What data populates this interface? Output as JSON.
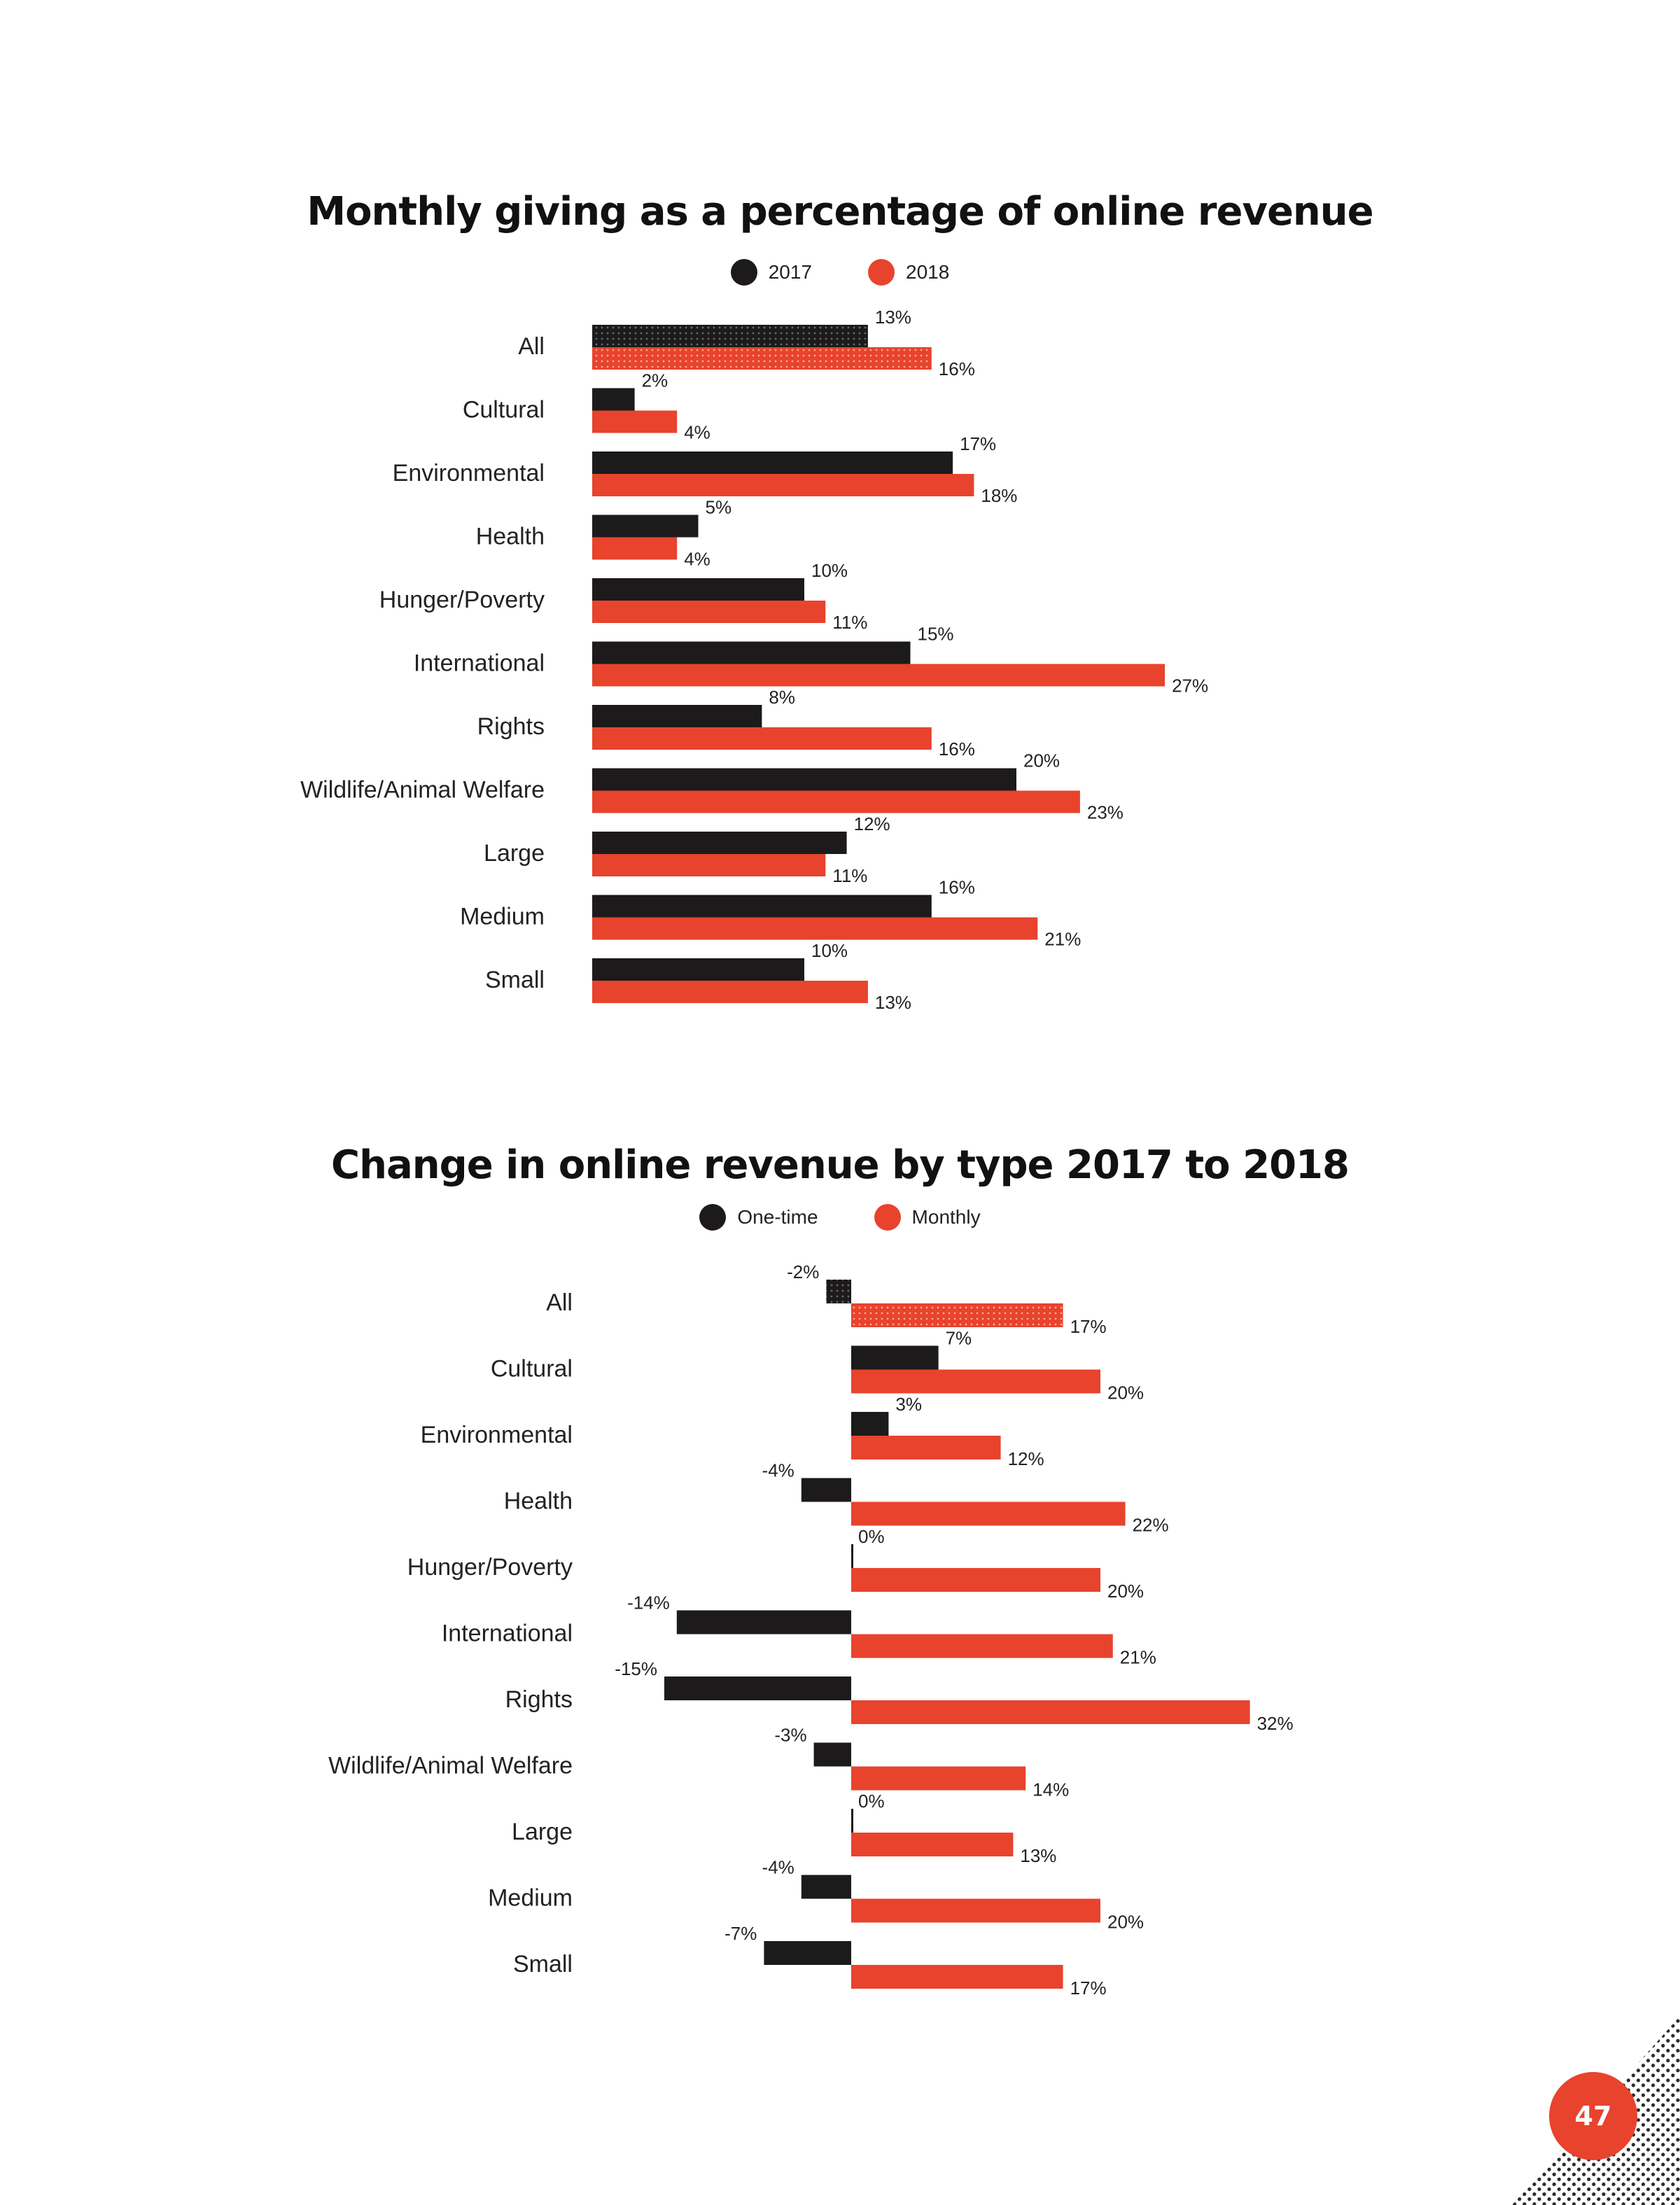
{
  "colors": {
    "black": "#1c1a1b",
    "red": "#e8432d"
  },
  "page_number": "47",
  "chart_data": [
    {
      "type": "bar",
      "orientation": "horizontal",
      "title": "Monthly giving as a percentage of online revenue",
      "categories": [
        "All",
        "Cultural",
        "Environmental",
        "Health",
        "Hunger/Poverty",
        "International",
        "Rights",
        "Wildlife/Animal Welfare",
        "Large",
        "Medium",
        "Small"
      ],
      "series": [
        {
          "name": "2017",
          "color": "#1c1a1b",
          "values": [
            13,
            2,
            17,
            5,
            10,
            15,
            8,
            20,
            12,
            16,
            10
          ]
        },
        {
          "name": "2018",
          "color": "#e8432d",
          "values": [
            16,
            4,
            18,
            4,
            11,
            27,
            16,
            23,
            11,
            21,
            13
          ]
        }
      ],
      "unit": "%",
      "highlighted_category": "All",
      "legend_position": "top-center",
      "grid": false
    },
    {
      "type": "bar",
      "orientation": "horizontal",
      "title": "Change in online revenue by type 2017 to 2018",
      "categories": [
        "All",
        "Cultural",
        "Environmental",
        "Health",
        "Hunger/Poverty",
        "International",
        "Rights",
        "Wildlife/Animal Welfare",
        "Large",
        "Medium",
        "Small"
      ],
      "series": [
        {
          "name": "One-time",
          "color": "#1c1a1b",
          "values": [
            -2,
            7,
            3,
            -4,
            0,
            -14,
            -15,
            -3,
            0,
            -4,
            -7
          ]
        },
        {
          "name": "Monthly",
          "color": "#e8432d",
          "values": [
            17,
            20,
            12,
            22,
            20,
            21,
            32,
            14,
            13,
            20,
            17
          ]
        }
      ],
      "unit": "%",
      "highlighted_category": "All",
      "legend_position": "top-center",
      "grid": false
    }
  ]
}
